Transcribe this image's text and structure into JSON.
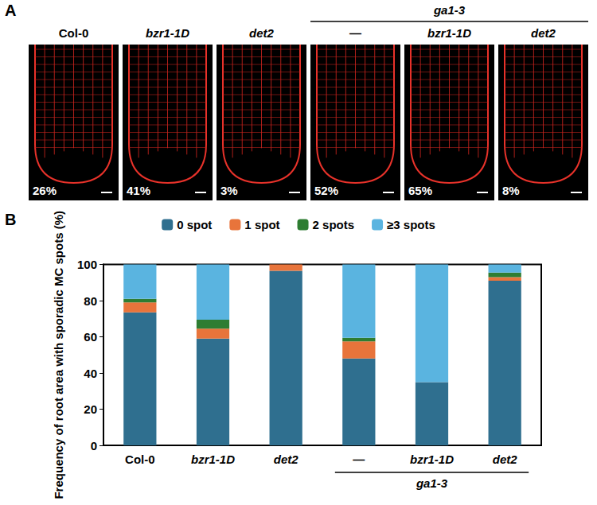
{
  "panel_a": {
    "letter": "A",
    "group": {
      "label": "ga1-3",
      "columns": [
        3,
        4,
        5
      ]
    },
    "images": [
      {
        "label": "Col-0",
        "percent": "26%"
      },
      {
        "label": "bzr1-1D",
        "percent": "41%"
      },
      {
        "label": "det2",
        "percent": "3%"
      },
      {
        "label": "—",
        "percent": "52%"
      },
      {
        "label": "bzr1-1D",
        "percent": "65%"
      },
      {
        "label": "det2",
        "percent": "8%"
      }
    ]
  },
  "chart_data": {
    "letter": "B",
    "type": "bar",
    "stacked": true,
    "categories": [
      "Col-0",
      "bzr1-1D",
      "det2",
      "—",
      "bzr1-1D",
      "det2"
    ],
    "groups": [
      {
        "label": "ga1-3",
        "start": 3,
        "end": 5
      }
    ],
    "ylabel": "Frequency of root area with sporadic MC spots (%)",
    "ylim": [
      0,
      100
    ],
    "yticks": [
      0,
      20,
      40,
      60,
      80,
      100
    ],
    "grid": false,
    "legend": "top",
    "series": [
      {
        "name": "0 spot",
        "color": "#2f6f8f",
        "values": [
          73.5,
          59,
          96.5,
          48,
          35,
          91
        ]
      },
      {
        "name": "1 spot",
        "color": "#e8743b",
        "values": [
          5.5,
          5.5,
          3.5,
          9.5,
          0,
          2
        ]
      },
      {
        "name": "2 spots",
        "color": "#2e7d32",
        "values": [
          2,
          5,
          0,
          2,
          0,
          2.5
        ]
      },
      {
        "name": "≥3 spots",
        "color": "#5ab4e0",
        "values": [
          19,
          30.5,
          0,
          40.5,
          65,
          4.5
        ]
      }
    ]
  }
}
